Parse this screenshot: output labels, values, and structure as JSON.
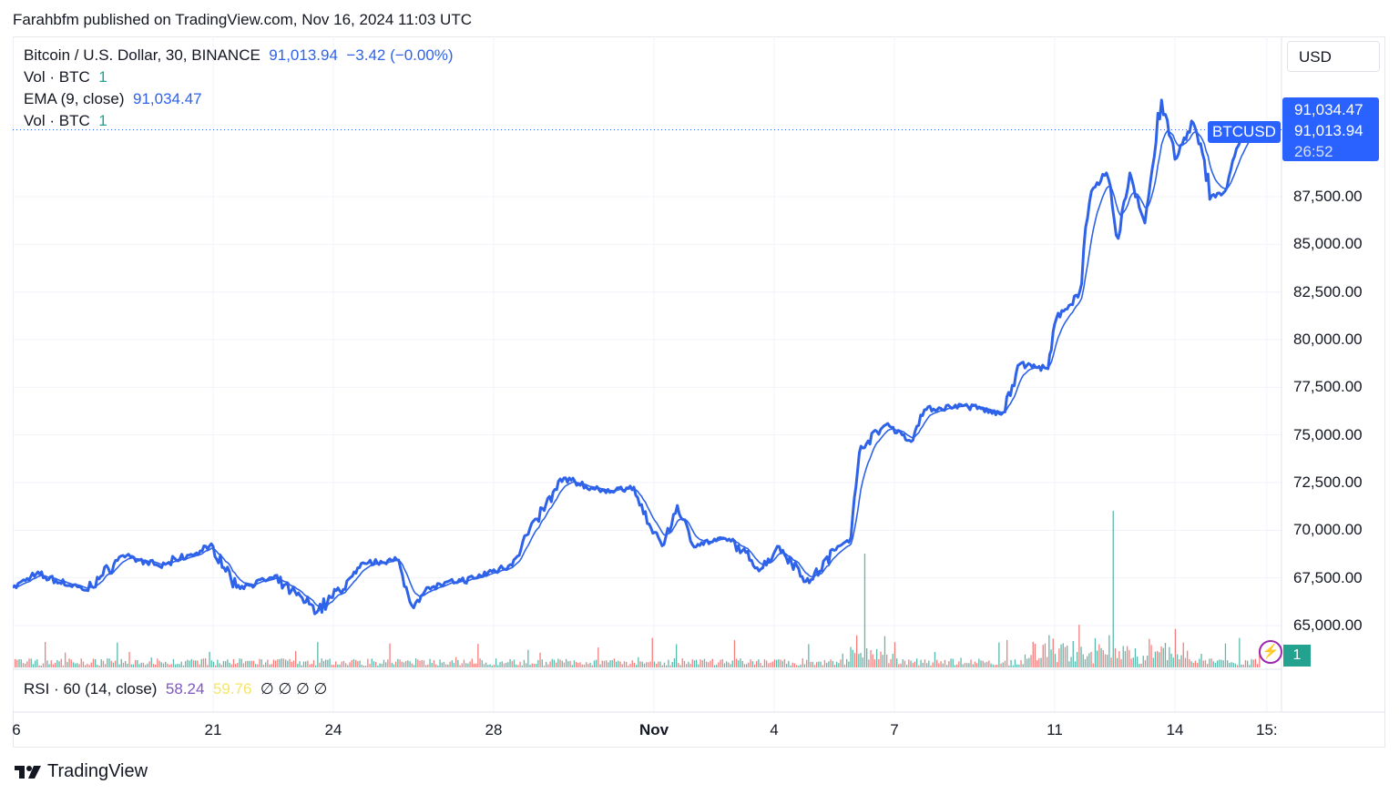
{
  "publish_line": "Farahbfm published on TradingView.com, Nov 16, 2024 11:03 UTC",
  "legend": {
    "symbol": "Bitcoin / U.S. Dollar, 30, BINANCE",
    "last": "91,013.94",
    "change": "−3.42 (−0.00%)",
    "vol1_label": "Vol · BTC",
    "vol1_value": "1",
    "ema_label": "EMA (9, close)",
    "ema_value": "91,034.47",
    "vol2_label": "Vol · BTC",
    "vol2_value": "1"
  },
  "currency": "USD",
  "price_box": {
    "ema": "91,034.47",
    "last": "91,013.94",
    "countdown": "26:52",
    "tag": "BTCUSD"
  },
  "volume_badge": "1",
  "rsi": {
    "label": "RSI · 60 (14, close)",
    "value1": "58.24",
    "value2": "59.76",
    "na": "∅ ∅ ∅ ∅"
  },
  "brand": "TradingView",
  "colors": {
    "line": "#2e62e8",
    "up": "#22a28f",
    "down": "#ef5350",
    "accent": "#2962ff"
  },
  "chart_data": {
    "type": "line",
    "title": "",
    "ylim": [
      64000,
      93000
    ],
    "y_ticks": [
      "65,000.00",
      "67,500.00",
      "70,000.00",
      "72,500.00",
      "75,000.00",
      "77,500.00",
      "80,000.00",
      "82,500.00",
      "85,000.00",
      "87,500.00"
    ],
    "y_tick_values": [
      65000,
      67500,
      70000,
      72500,
      75000,
      77500,
      80000,
      82500,
      85000,
      87500
    ],
    "x_ticks": [
      "6",
      "21",
      "24",
      "28",
      "Nov",
      "4",
      "7",
      "11",
      "14",
      "15:"
    ],
    "x_tick_dates": [
      "2024-10-16",
      "2024-10-21",
      "2024-10-24",
      "2024-10-28",
      "2024-11-01",
      "2024-11-04",
      "2024-11-07",
      "2024-11-11",
      "2024-11-14",
      "2024-11-16T07:00"
    ],
    "grid": true,
    "current_price": 91013.94,
    "series": [
      {
        "x": [
          "2024-10-16T00:00",
          "2024-10-16T14:00",
          "2024-10-17T20:00",
          "2024-10-18T18:00",
          "2024-10-19T16:00",
          "2024-10-21T00:00",
          "2024-10-21T14:00",
          "2024-10-22T12:00",
          "2024-10-23T15:00",
          "2024-10-24T21:00",
          "2024-10-25T14:00",
          "2024-10-25T23:00",
          "2024-10-26T09:00",
          "2024-10-27T12:00",
          "2024-10-28T10:00",
          "2024-10-29T02:00",
          "2024-10-29T18:00",
          "2024-10-30T16:00",
          "2024-10-31T12:00",
          "2024-10-31T20:00",
          "2024-11-01T06:00",
          "2024-11-01T14:00",
          "2024-11-01T23:00",
          "2024-11-02T21:00",
          "2024-11-03T16:00",
          "2024-11-04T03:00",
          "2024-11-04T21:00",
          "2024-11-05T14:00",
          "2024-11-05T22:00",
          "2024-11-06T04:00",
          "2024-11-06T20:00",
          "2024-11-07T10:00",
          "2024-11-07T18:00",
          "2024-11-08T18:00",
          "2024-11-09T16:00",
          "2024-11-10T03:00",
          "2024-11-10T20:00",
          "2024-11-11T01:00",
          "2024-11-11T15:00",
          "2024-11-11T22:00",
          "2024-11-12T07:00",
          "2024-11-12T14:00",
          "2024-11-12T21:00",
          "2024-11-13T06:00",
          "2024-11-13T16:00",
          "2024-11-14T00:00",
          "2024-11-14T11:00",
          "2024-11-14T22:00",
          "2024-11-15T06:00",
          "2024-11-15T14:00",
          "2024-11-15T20:00"
        ],
        "y": [
          67000,
          67700,
          66850,
          68680,
          68100,
          69150,
          67000,
          67480,
          65800,
          68300,
          68440,
          66050,
          67000,
          67480,
          68200,
          70590,
          72740,
          72020,
          72260,
          70350,
          69250,
          71300,
          69250,
          69540,
          67960,
          69150,
          67240,
          69150,
          69630,
          74410,
          75600,
          74650,
          76320,
          76560,
          76080,
          78710,
          78470,
          81100,
          82530,
          87790,
          88750,
          85310,
          88750,
          86120,
          92570,
          89460,
          91370,
          87550,
          87790,
          90180,
          91013.94
        ]
      }
    ]
  }
}
